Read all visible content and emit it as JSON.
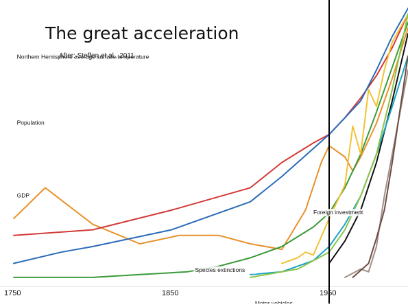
{
  "title": "The great acceleration",
  "subtitle": "After: Steffen et al., 2011",
  "chart_data": {
    "type": "line",
    "title": "The great acceleration",
    "subtitle": "After: Steffen et al., 2011",
    "x_ticks": [
      1750,
      1850,
      1950
    ],
    "xlim": [
      1750,
      2000
    ],
    "marker_year": 1950,
    "grid": false,
    "legend": "inline labels",
    "series": [
      {
        "name": "Northern Hemisphere average surface temperature",
        "color": "#e8902a",
        "x": [
          1750,
          1770,
          1800,
          1830,
          1855,
          1880,
          1900,
          1920,
          1935,
          1945,
          1950,
          1960,
          1965,
          1970,
          1980,
          1990,
          2000
        ],
        "y": [
          22,
          33,
          20,
          13,
          16,
          16,
          13,
          11,
          25,
          42,
          48,
          44,
          39,
          44,
          56,
          72,
          90
        ]
      },
      {
        "name": "Population",
        "color": "#d23a37",
        "x": [
          1750,
          1800,
          1850,
          1900,
          1920,
          1940,
          1950,
          1960,
          1970,
          1980,
          1990,
          2000
        ],
        "y": [
          16,
          18,
          25,
          33,
          42,
          49,
          52,
          58,
          65,
          73,
          83,
          95
        ]
      },
      {
        "name": "GDP",
        "color": "#2a6bb8",
        "x": [
          1750,
          1780,
          1800,
          1850,
          1900,
          1920,
          1940,
          1950,
          1960,
          1970,
          1980,
          1990,
          2000
        ],
        "y": [
          6,
          10,
          12,
          18,
          28,
          37,
          47,
          52,
          58,
          64,
          75,
          87,
          97
        ]
      },
      {
        "name": "Species extinctions",
        "color": "#3a9a3a",
        "x": [
          1750,
          1800,
          1830,
          1860,
          1880,
          1900,
          1920,
          1940,
          1950,
          1960,
          1970,
          1980,
          1990,
          2000
        ],
        "y": [
          1,
          1,
          2,
          3,
          5,
          8,
          12,
          19,
          24,
          33,
          45,
          60,
          76,
          92
        ]
      },
      {
        "name": "Motor vehicles",
        "color": "#111111",
        "x": [
          1950,
          1960,
          1970,
          1980,
          1990,
          2000
        ],
        "y": [
          6,
          14,
          25,
          42,
          64,
          88
        ]
      },
      {
        "name": "Foreign investment",
        "color": "#f2c233",
        "x": [
          1920,
          1930,
          1935,
          1940,
          1950,
          1960,
          1965,
          1970,
          1975,
          1980,
          1985,
          1990,
          2000
        ],
        "y": [
          6,
          8,
          10,
          9,
          22,
          34,
          55,
          45,
          68,
          62,
          75,
          85,
          95
        ]
      },
      {
        "name": "",
        "color": "#1aa3c4",
        "x": [
          1900,
          1920,
          1940,
          1950,
          1960,
          1970,
          1980,
          1990,
          2000
        ],
        "y": [
          2,
          3,
          7,
          12,
          20,
          30,
          45,
          62,
          80
        ]
      },
      {
        "name": "",
        "color": "#8bc34a",
        "x": [
          1900,
          1930,
          1950,
          1960,
          1970,
          1980,
          1990,
          2000
        ],
        "y": [
          1,
          4,
          10,
          18,
          30,
          45,
          68,
          95
        ]
      },
      {
        "name": "",
        "color": "#9e8e86",
        "x": [
          1960,
          1970,
          1975,
          1980,
          1985,
          1990,
          2000
        ],
        "y": [
          1,
          4,
          3,
          12,
          30,
          45,
          75
        ]
      },
      {
        "name": "",
        "color": "#6d4c41",
        "x": [
          1965,
          1975,
          1980,
          1985,
          1990,
          2000
        ],
        "y": [
          1,
          6,
          15,
          25,
          42,
          80
        ]
      }
    ],
    "labels": [
      {
        "text": "Northern Hemisphere average surface temperature",
        "x": 1752,
        "y": 0.79
      },
      {
        "text": "Population",
        "x": 1752,
        "y": 0.555
      },
      {
        "text": "GDP",
        "x": 1752,
        "y": 0.295
      },
      {
        "text": "Species extinctions",
        "x": 1865,
        "y": 0.03
      },
      {
        "text": "Motor vehicles",
        "x": 1903,
        "y": -0.09
      },
      {
        "text": "Foreign investment",
        "x": 1940,
        "y": 0.235
      }
    ]
  }
}
